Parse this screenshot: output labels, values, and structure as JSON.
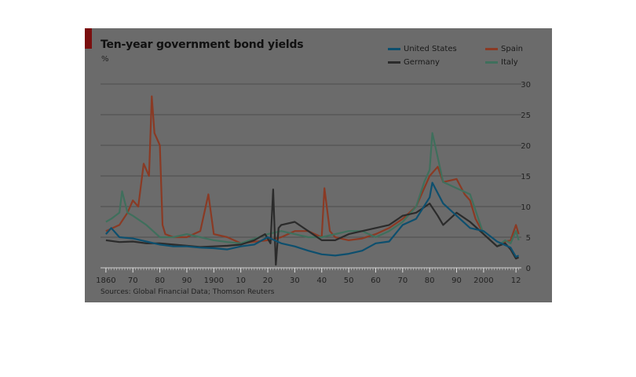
{
  "chart_data": {
    "type": "line",
    "title": "Ten-year government bond yields",
    "unit_label": "%",
    "source": "Sources: Global Financial Data; Thomson Reuters",
    "xlim": [
      1858,
      2014
    ],
    "ylim": [
      0,
      30
    ],
    "x_ticks": [
      1860,
      1870,
      1880,
      1890,
      1900,
      1910,
      1920,
      1930,
      1940,
      1950,
      1960,
      1970,
      1980,
      1990,
      2000,
      2012
    ],
    "x_tick_labels": [
      "1860",
      "70",
      "80",
      "90",
      "1900",
      "10",
      "20",
      "30",
      "40",
      "50",
      "60",
      "70",
      "80",
      "90",
      "2000",
      "12"
    ],
    "y_ticks": [
      0,
      5,
      10,
      15,
      20,
      25,
      30
    ],
    "y_tick_labels": [
      "0",
      "5",
      "10",
      "15",
      "20",
      "25",
      "30"
    ],
    "grid": true,
    "legend_position": "top-right",
    "series": [
      {
        "name": "United States",
        "color": "#0d4f6e",
        "x": [
          1860,
          1862,
          1865,
          1870,
          1875,
          1880,
          1885,
          1890,
          1895,
          1900,
          1905,
          1910,
          1915,
          1920,
          1925,
          1930,
          1935,
          1940,
          1945,
          1950,
          1955,
          1960,
          1965,
          1970,
          1975,
          1980,
          1981,
          1985,
          1990,
          1995,
          2000,
          2005,
          2008,
          2010,
          2012,
          2013
        ],
        "y": [
          5.5,
          6.5,
          5.0,
          4.8,
          4.3,
          3.8,
          3.5,
          3.5,
          3.3,
          3.2,
          3.0,
          3.5,
          3.8,
          5.0,
          4.0,
          3.5,
          2.8,
          2.2,
          2.0,
          2.3,
          2.8,
          4.0,
          4.3,
          7.0,
          8.0,
          11.5,
          13.9,
          10.5,
          8.5,
          6.5,
          6.0,
          4.3,
          3.7,
          3.3,
          1.8,
          2.0
        ]
      },
      {
        "name": "Spain",
        "color": "#8a3a24",
        "x": [
          1860,
          1865,
          1868,
          1870,
          1872,
          1874,
          1876,
          1877,
          1878,
          1880,
          1881,
          1882,
          1885,
          1890,
          1895,
          1898,
          1900,
          1905,
          1910,
          1920,
          1925,
          1930,
          1935,
          1940,
          1941,
          1943,
          1945,
          1950,
          1955,
          1960,
          1965,
          1970,
          1975,
          1980,
          1983,
          1985,
          1990,
          1993,
          1995,
          1997,
          2000,
          2005,
          2008,
          2010,
          2012,
          2013
        ],
        "y": [
          6.0,
          7.0,
          9.0,
          11.0,
          10.0,
          17.0,
          15.0,
          28.0,
          22.0,
          20.0,
          7.0,
          5.5,
          5.0,
          5.0,
          6.0,
          12.0,
          5.5,
          5.0,
          4.0,
          4.5,
          5.0,
          6.0,
          6.0,
          5.0,
          13.0,
          6.0,
          5.0,
          4.5,
          4.8,
          5.5,
          6.5,
          8.0,
          10.0,
          15.0,
          16.5,
          14.0,
          14.5,
          12.0,
          11.0,
          8.0,
          5.5,
          3.5,
          4.3,
          4.5,
          7.0,
          5.5
        ]
      },
      {
        "name": "Germany",
        "color": "#2b2b2b",
        "x": [
          1860,
          1865,
          1870,
          1875,
          1880,
          1885,
          1890,
          1895,
          1900,
          1905,
          1910,
          1915,
          1919,
          1921,
          1922,
          1923,
          1924,
          1925,
          1930,
          1935,
          1940,
          1945,
          1950,
          1955,
          1960,
          1965,
          1970,
          1975,
          1980,
          1983,
          1985,
          1990,
          1995,
          2000,
          2005,
          2008,
          2010,
          2012,
          2013
        ],
        "y": [
          4.5,
          4.2,
          4.3,
          4.0,
          4.0,
          3.8,
          3.6,
          3.4,
          3.5,
          3.6,
          3.8,
          4.5,
          5.5,
          4.0,
          12.8,
          0.5,
          6.5,
          7.0,
          7.5,
          6.0,
          4.5,
          4.5,
          5.5,
          6.0,
          6.5,
          7.0,
          8.5,
          9.0,
          10.5,
          8.5,
          7.0,
          9.0,
          7.5,
          5.5,
          3.5,
          4.0,
          3.0,
          1.5,
          1.7
        ]
      },
      {
        "name": "Italy",
        "color": "#3f6f5c",
        "x": [
          1860,
          1862,
          1865,
          1866,
          1868,
          1870,
          1875,
          1880,
          1885,
          1890,
          1895,
          1900,
          1905,
          1910,
          1920,
          1925,
          1930,
          1935,
          1940,
          1945,
          1950,
          1955,
          1960,
          1965,
          1970,
          1975,
          1978,
          1980,
          1981,
          1982,
          1985,
          1990,
          1995,
          2000,
          2005,
          2008,
          2010,
          2012,
          2013
        ],
        "y": [
          7.5,
          8.0,
          9.0,
          12.5,
          9.0,
          8.5,
          7.0,
          5.0,
          5.0,
          5.5,
          5.0,
          4.5,
          4.2,
          4.0,
          5.5,
          6.0,
          5.5,
          5.0,
          5.0,
          5.5,
          6.0,
          6.0,
          5.0,
          6.0,
          7.5,
          10.0,
          14.0,
          16.0,
          22.0,
          20.0,
          14.0,
          13.0,
          12.0,
          5.5,
          3.5,
          4.5,
          4.0,
          6.0,
          4.5
        ]
      }
    ]
  }
}
